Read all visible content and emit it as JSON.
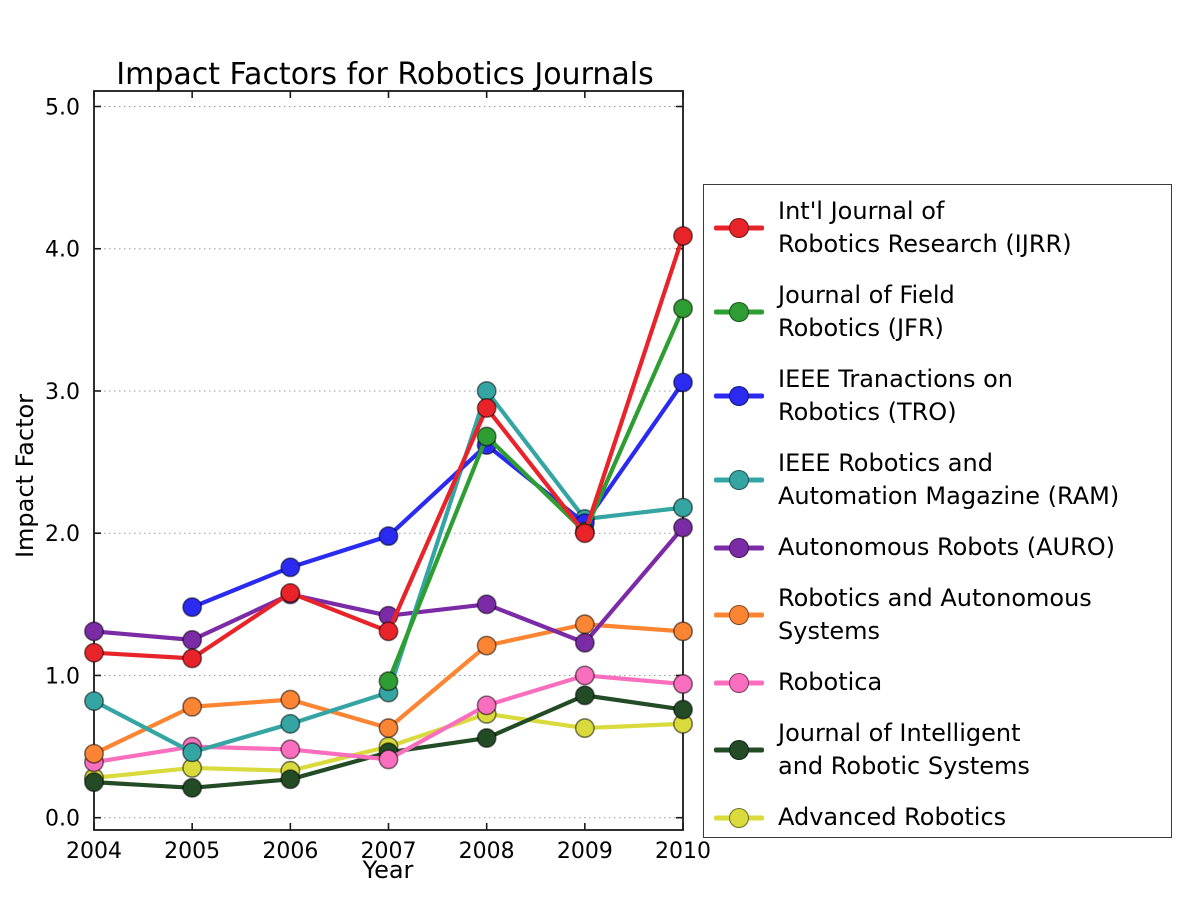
{
  "title": "Impact Factors for Robotics Journals",
  "chart_data": {
    "type": "line",
    "title": "Impact Factors for Robotics Journals",
    "xlabel": "Year",
    "ylabel": "Impact Factor",
    "x": [
      2004,
      2005,
      2006,
      2007,
      2008,
      2009,
      2010
    ],
    "xtick_labels": [
      "2004",
      "2005",
      "2006",
      "2007",
      "2008",
      "2009",
      "2010"
    ],
    "ytick_labels": [
      "0.0",
      "1.0",
      "2.0",
      "3.0",
      "4.0",
      "5.0"
    ],
    "ylim": [
      0,
      5
    ],
    "grid": "horizontal dotted gridlines at integer values",
    "legend_position": "outside right",
    "marker": "circle",
    "series": [
      {
        "name": "Int'l Journal of Robotics Research (IJRR)",
        "legend_lines": [
          "Int'l Journal of",
          "Robotics Research (IJRR)"
        ],
        "color": "#e82329",
        "values": [
          1.16,
          1.12,
          1.58,
          1.31,
          2.88,
          2.0,
          4.09
        ]
      },
      {
        "name": "Journal of Field Robotics (JFR)",
        "legend_lines": [
          "Journal of Field",
          "Robotics (JFR)"
        ],
        "color": "#2f9e32",
        "values": [
          null,
          null,
          null,
          0.96,
          2.68,
          2.01,
          3.58
        ]
      },
      {
        "name": "IEEE Tranactions on Robotics (TRO)",
        "legend_lines": [
          "IEEE Tranactions on",
          "Robotics (TRO)"
        ],
        "color": "#2a2af0",
        "values": [
          null,
          1.48,
          1.76,
          1.98,
          2.62,
          2.07,
          3.06
        ]
      },
      {
        "name": "IEEE Robotics and Automation Magazine (RAM)",
        "legend_lines": [
          "IEEE Robotics and",
          "Automation Magazine (RAM)"
        ],
        "color": "#35a5a3",
        "values": [
          0.82,
          0.46,
          0.66,
          0.88,
          3.0,
          2.1,
          2.18
        ]
      },
      {
        "name": "Autonomous Robots (AURO)",
        "legend_lines": [
          "Autonomous Robots (AURO)"
        ],
        "color": "#7c2ba6",
        "values": [
          1.31,
          1.25,
          1.57,
          1.42,
          1.5,
          1.23,
          2.04
        ]
      },
      {
        "name": "Robotics and Autonomous Systems",
        "legend_lines": [
          "Robotics and Autonomous",
          "Systems"
        ],
        "color": "#fb8532",
        "values": [
          0.45,
          0.78,
          0.83,
          0.63,
          1.21,
          1.36,
          1.31
        ]
      },
      {
        "name": "Robotica",
        "legend_lines": [
          "Robotica"
        ],
        "color": "#fa6ebe",
        "values": [
          0.39,
          0.5,
          0.48,
          0.41,
          0.79,
          1.0,
          0.94
        ]
      },
      {
        "name": "Journal of Intelligent and Robotic Systems",
        "legend_lines": [
          "Journal of Intelligent",
          "and Robotic Systems"
        ],
        "color": "#224b26",
        "values": [
          0.25,
          0.21,
          0.27,
          0.46,
          0.56,
          0.86,
          0.76
        ]
      },
      {
        "name": "Advanced Robotics",
        "legend_lines": [
          "Advanced Robotics"
        ],
        "color": "#d9da3b",
        "values": [
          0.28,
          0.35,
          0.33,
          0.5,
          0.73,
          0.63,
          0.66
        ]
      }
    ]
  }
}
